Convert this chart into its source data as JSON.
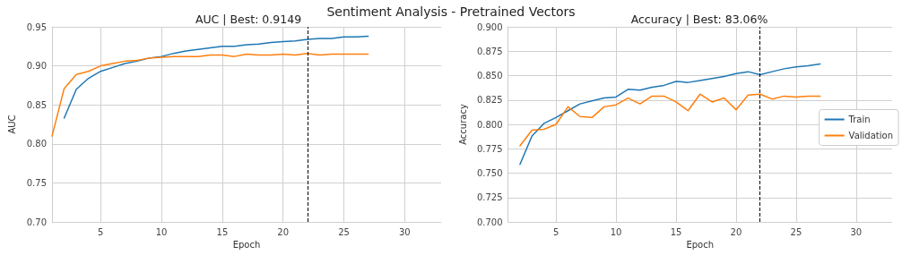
{
  "chart_data": [
    {
      "type": "line",
      "title": "AUC | Best: 0.9149",
      "xlabel": "Epoch",
      "ylabel": "AUC",
      "annotations": [
        "Sentiment Analysis - Pretrained Vectors"
      ],
      "x": [
        1,
        2,
        3,
        4,
        5,
        6,
        7,
        8,
        9,
        10,
        11,
        12,
        13,
        14,
        15,
        16,
        17,
        18,
        19,
        20,
        21,
        22,
        23,
        24,
        25,
        26,
        27
      ],
      "series": [
        {
          "color": "#1f77b4",
          "values": [
            null,
            0.833,
            0.87,
            0.884,
            0.893,
            0.898,
            0.903,
            0.906,
            0.91,
            0.912,
            0.916,
            0.919,
            0.921,
            0.923,
            0.925,
            0.925,
            0.927,
            0.928,
            0.93,
            0.931,
            0.932,
            0.934,
            0.935,
            0.935,
            0.937,
            0.937,
            0.938
          ]
        },
        {
          "color": "#ff7f0e",
          "values": [
            0.81,
            0.871,
            0.889,
            0.893,
            0.9,
            0.903,
            0.906,
            0.907,
            0.91,
            0.911,
            0.912,
            0.912,
            0.912,
            0.914,
            0.914,
            0.912,
            0.915,
            0.914,
            0.914,
            0.915,
            0.914,
            0.916,
            0.914,
            0.915,
            0.915,
            0.915,
            0.915
          ]
        }
      ],
      "xlim": [
        1,
        33
      ],
      "xticks": [
        5,
        10,
        15,
        20,
        25,
        30
      ],
      "ylim": [
        0.7,
        0.95
      ],
      "yticks": [
        {
          "value": 0.7,
          "label": "0.70"
        },
        0.75,
        {
          "value": 0.8,
          "label": "0.80"
        },
        0.85,
        {
          "value": 0.9,
          "label": "0.90"
        },
        0.95
      ],
      "ref_lines": [
        {
          "axis": "x",
          "value": 22,
          "label": null,
          "color": "#000000",
          "line_style": "dashed"
        }
      ],
      "grid": true,
      "legend": false,
      "marker": "none",
      "line_style": "solid"
    },
    {
      "type": "line",
      "title": "Accuracy | Best: 83.06%",
      "xlabel": "Epoch",
      "ylabel": "Accuracy",
      "x": [
        2,
        3,
        4,
        5,
        6,
        7,
        8,
        9,
        10,
        11,
        12,
        13,
        14,
        15,
        16,
        17,
        18,
        19,
        20,
        21,
        22,
        23,
        24,
        25,
        26,
        27
      ],
      "series": [
        {
          "name": "Train",
          "color": "#1f77b4",
          "values": [
            0.759,
            0.788,
            0.801,
            0.807,
            0.814,
            0.821,
            0.824,
            0.827,
            0.828,
            0.836,
            0.835,
            0.838,
            0.84,
            0.844,
            0.843,
            0.845,
            0.847,
            0.849,
            0.852,
            0.854,
            0.851,
            0.854,
            0.857,
            0.859,
            0.86,
            0.862
          ]
        },
        {
          "name": "Validation",
          "color": "#ff7f0e",
          "values": [
            0.778,
            0.794,
            0.795,
            0.8,
            0.818,
            0.808,
            0.807,
            0.818,
            0.82,
            0.827,
            0.821,
            0.829,
            0.829,
            0.823,
            0.814,
            0.831,
            0.823,
            0.827,
            0.815,
            0.83,
            0.831,
            0.826,
            0.829,
            0.828,
            0.829,
            0.829
          ]
        }
      ],
      "xlim": [
        1,
        33
      ],
      "xticks": [
        5,
        10,
        15,
        20,
        25,
        30
      ],
      "ylim": [
        0.7,
        0.9
      ],
      "yticks": [
        {
          "value": 0.7,
          "label": "0.700"
        },
        0.725,
        {
          "value": 0.75,
          "label": "0.750"
        },
        0.775,
        {
          "value": 0.8,
          "label": "0.800"
        },
        0.825,
        {
          "value": 0.85,
          "label": "0.850"
        },
        0.875,
        {
          "value": 0.9,
          "label": "0.900"
        }
      ],
      "ref_lines": [
        {
          "axis": "x",
          "value": 22,
          "label": null,
          "color": "#000000",
          "line_style": "dashed"
        }
      ],
      "grid": true,
      "legend": "right",
      "marker": "none",
      "line_style": "solid"
    }
  ]
}
